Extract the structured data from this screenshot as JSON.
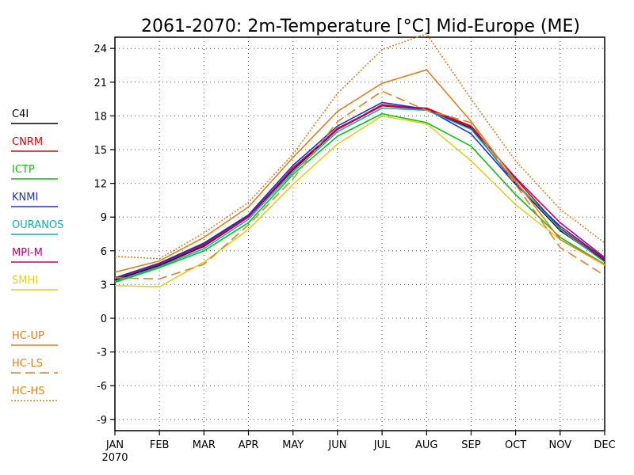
{
  "chart_data": {
    "type": "line",
    "title": "2061-2070: 2m-Temperature [°C] Mid-Europe (ME)",
    "xlabel": "",
    "ylabel": "",
    "categories": [
      "JAN",
      "FEB",
      "MAR",
      "APR",
      "MAY",
      "JUN",
      "JUL",
      "AUG",
      "SEP",
      "OCT",
      "NOV",
      "DEC"
    ],
    "x_sublabel": "2070",
    "ylim": [
      -10,
      25
    ],
    "yticks": [
      24,
      21,
      18,
      15,
      12,
      9,
      6,
      3,
      0,
      -3,
      -6,
      -9
    ],
    "grid": true,
    "legend_position": "left",
    "series": [
      {
        "name": "C4I",
        "color": "#000000",
        "style": "solid",
        "values": [
          3.4,
          4.7,
          6.4,
          9.0,
          13.2,
          16.8,
          18.9,
          18.6,
          16.9,
          12.0,
          7.8,
          5.1
        ]
      },
      {
        "name": "CNRM",
        "color": "#e00000",
        "style": "solid",
        "values": [
          3.5,
          4.8,
          6.6,
          9.1,
          13.3,
          16.9,
          18.9,
          18.7,
          17.1,
          12.4,
          8.0,
          5.2
        ]
      },
      {
        "name": "ICTP",
        "color": "#10c010",
        "style": "solid",
        "values": [
          3.2,
          4.5,
          6.0,
          8.5,
          12.8,
          16.2,
          18.2,
          17.4,
          15.3,
          11.0,
          7.2,
          4.8
        ]
      },
      {
        "name": "KNMI",
        "color": "#2030d0",
        "style": "solid",
        "values": [
          3.6,
          4.9,
          6.7,
          9.2,
          13.6,
          17.1,
          19.2,
          18.6,
          16.4,
          11.9,
          8.2,
          5.3
        ]
      },
      {
        "name": "OURANOS",
        "color": "#10b0b0",
        "style": "solid",
        "values": [
          3.3,
          4.6,
          6.2,
          8.8,
          13.0,
          16.6,
          18.7,
          18.5,
          16.8,
          12.1,
          7.9,
          5.0
        ]
      },
      {
        "name": "MPI-M",
        "color": "#c00070",
        "style": "solid",
        "values": [
          3.5,
          4.8,
          6.5,
          9.0,
          13.4,
          16.8,
          19.0,
          18.6,
          17.0,
          12.5,
          8.5,
          5.4
        ]
      },
      {
        "name": "SMHI",
        "color": "#e0d020",
        "style": "solid",
        "values": [
          2.9,
          2.8,
          5.0,
          7.9,
          11.9,
          15.5,
          18.0,
          17.3,
          14.0,
          10.1,
          7.0,
          4.7
        ]
      },
      {
        "name": "HC-UP",
        "color": "#e08020",
        "style": "solid",
        "values": [
          4.1,
          5.1,
          7.2,
          9.9,
          14.3,
          18.4,
          20.9,
          22.1,
          17.5,
          12.2,
          7.0,
          4.8
        ]
      },
      {
        "name": "HC-LS",
        "color": "#e08020",
        "style": "dashed",
        "values": [
          3.6,
          3.5,
          4.8,
          8.3,
          12.4,
          17.5,
          20.2,
          18.5,
          17.4,
          11.9,
          6.3,
          3.8
        ]
      },
      {
        "name": "HC-HS",
        "color": "#e08020",
        "style": "dotted",
        "values": [
          5.5,
          5.3,
          7.6,
          10.3,
          14.6,
          20.0,
          23.9,
          25.3,
          19.5,
          14.0,
          9.7,
          6.7
        ]
      }
    ]
  }
}
